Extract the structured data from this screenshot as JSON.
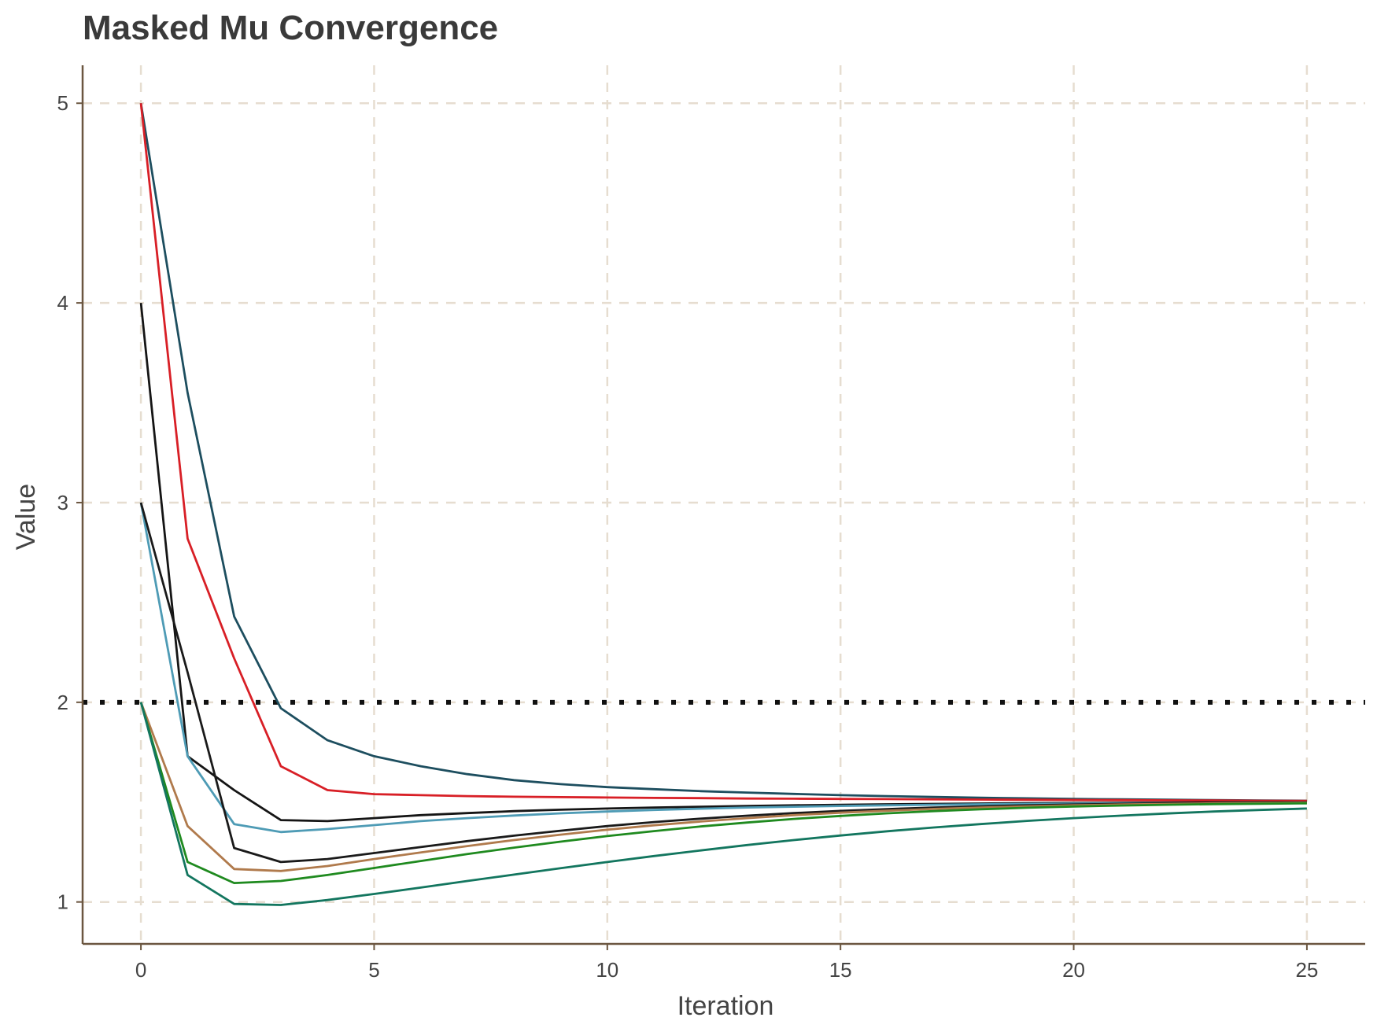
{
  "chart_data": {
    "type": "line",
    "title": "Masked Mu Convergence",
    "xlabel": "Iteration",
    "ylabel": "Value",
    "xlim": [
      -1.25,
      26.25
    ],
    "ylim": [
      0.79,
      5.19
    ],
    "xticks": [
      0,
      5,
      10,
      15,
      20,
      25
    ],
    "yticks": [
      1,
      2,
      3,
      4,
      5
    ],
    "x_tick_labels": [
      "0",
      "5",
      "10",
      "15",
      "20",
      "25"
    ],
    "y_tick_labels": [
      "1",
      "2",
      "3",
      "4",
      "5"
    ],
    "grid": true,
    "grid_style": "dashed",
    "legend": "none",
    "reference_line": {
      "y": 2,
      "style": "dotted",
      "color": "#111111"
    },
    "colors": {
      "grid": "#e6ddd0",
      "axis": "#6b5640",
      "text": "#444444"
    },
    "x": [
      0,
      1,
      2,
      3,
      4,
      5,
      6,
      7,
      8,
      9,
      10,
      11,
      12,
      13,
      14,
      15,
      16,
      17,
      18,
      19,
      20,
      21,
      22,
      23,
      24,
      25
    ],
    "series": [
      {
        "color": "#1d4e5f",
        "values": [
          5.0,
          3.55,
          2.43,
          1.97,
          1.81,
          1.73,
          1.68,
          1.64,
          1.61,
          1.59,
          1.575,
          1.565,
          1.555,
          1.548,
          1.541,
          1.535,
          1.53,
          1.526,
          1.522,
          1.519,
          1.516,
          1.514,
          1.512,
          1.51,
          1.508,
          1.507
        ]
      },
      {
        "color": "#d81f26",
        "values": [
          5.0,
          2.82,
          2.22,
          1.68,
          1.56,
          1.54,
          1.535,
          1.53,
          1.527,
          1.525,
          1.523,
          1.521,
          1.52,
          1.518,
          1.517,
          1.516,
          1.515,
          1.514,
          1.513,
          1.512,
          1.511,
          1.51,
          1.509,
          1.508,
          1.507,
          1.506
        ]
      },
      {
        "color": "#151515",
        "values": [
          4.0,
          1.73,
          1.56,
          1.41,
          1.405,
          1.42,
          1.435,
          1.445,
          1.455,
          1.462,
          1.468,
          1.473,
          1.477,
          1.481,
          1.484,
          1.487,
          1.489,
          1.491,
          1.493,
          1.495,
          1.496,
          1.497,
          1.498,
          1.499,
          1.5,
          1.5
        ]
      },
      {
        "color": "#4e9bb5",
        "values": [
          3.0,
          1.73,
          1.39,
          1.35,
          1.365,
          1.385,
          1.405,
          1.42,
          1.433,
          1.444,
          1.453,
          1.461,
          1.467,
          1.473,
          1.477,
          1.481,
          1.484,
          1.487,
          1.489,
          1.491,
          1.493,
          1.494,
          1.495,
          1.496,
          1.497,
          1.498
        ]
      },
      {
        "color": "#1a1a1a",
        "values": [
          3.0,
          2.15,
          1.27,
          1.2,
          1.215,
          1.245,
          1.275,
          1.305,
          1.332,
          1.357,
          1.38,
          1.4,
          1.417,
          1.432,
          1.445,
          1.456,
          1.465,
          1.473,
          1.479,
          1.484,
          1.488,
          1.491,
          1.494,
          1.496,
          1.497,
          1.498
        ]
      },
      {
        "color": "#b07a4c",
        "values": [
          2.0,
          1.38,
          1.165,
          1.155,
          1.18,
          1.215,
          1.248,
          1.28,
          1.31,
          1.337,
          1.362,
          1.384,
          1.403,
          1.42,
          1.435,
          1.447,
          1.457,
          1.466,
          1.473,
          1.479,
          1.484,
          1.488,
          1.491,
          1.494,
          1.496,
          1.497
        ]
      },
      {
        "color": "#1f8a1f",
        "values": [
          2.0,
          1.2,
          1.095,
          1.105,
          1.135,
          1.17,
          1.205,
          1.24,
          1.272,
          1.302,
          1.33,
          1.355,
          1.378,
          1.398,
          1.416,
          1.431,
          1.444,
          1.455,
          1.464,
          1.472,
          1.478,
          1.483,
          1.487,
          1.49,
          1.492,
          1.494
        ]
      },
      {
        "color": "#13765f",
        "values": [
          2.0,
          1.135,
          0.99,
          0.985,
          1.01,
          1.04,
          1.072,
          1.105,
          1.137,
          1.169,
          1.2,
          1.23,
          1.258,
          1.285,
          1.31,
          1.333,
          1.354,
          1.373,
          1.39,
          1.406,
          1.42,
          1.432,
          1.443,
          1.453,
          1.461,
          1.468
        ]
      }
    ]
  }
}
